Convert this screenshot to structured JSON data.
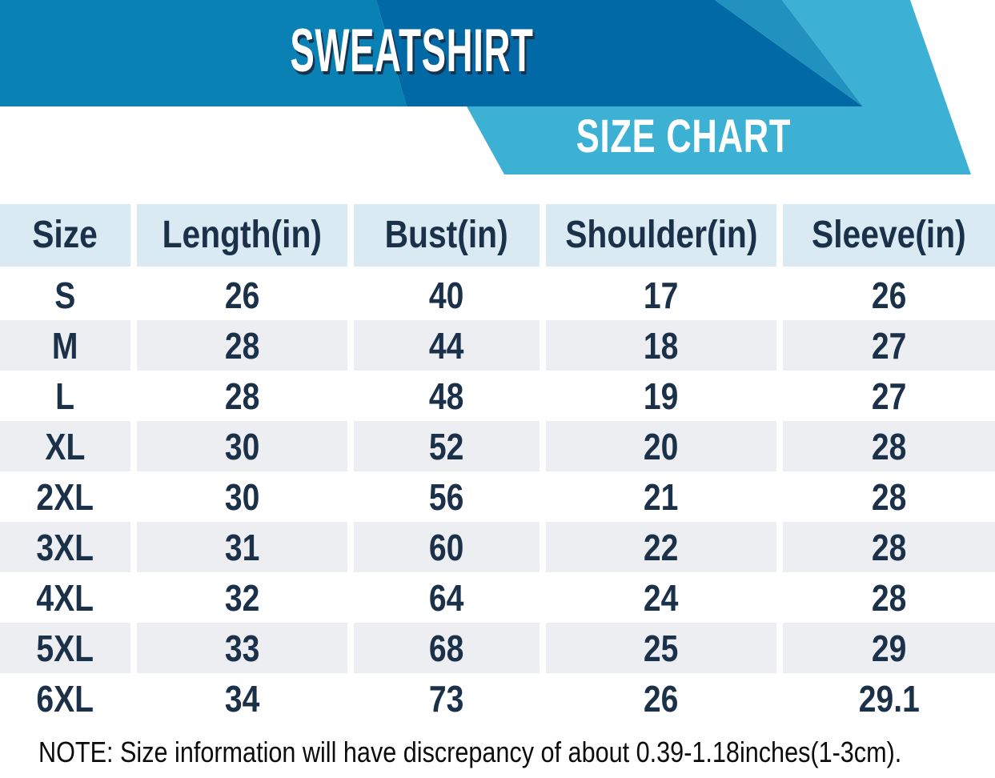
{
  "banner": {
    "product_title": "SWEATSHIRT",
    "chart_title": "SIZE CHART",
    "colors": {
      "left_blue": "#0981B5",
      "dark_blue": "#0069A6",
      "wedge_blue": "#2191C0",
      "cyan": "#3CB1D4",
      "title_shadow_navy": "#16334E",
      "header_bg": "#D9EAF3",
      "alt_row_bg": "#EDEEF2",
      "table_text_navy": "#1B3049"
    }
  },
  "chart_data": {
    "type": "table",
    "title": "SWEATSHIRT SIZE CHART",
    "columns": [
      "Size",
      "Length(in)",
      "Bust(in)",
      "Shoulder(in)",
      "Sleeve(in)"
    ],
    "rows": [
      [
        "S",
        "26",
        "40",
        "17",
        "26"
      ],
      [
        "M",
        "28",
        "44",
        "18",
        "27"
      ],
      [
        "L",
        "28",
        "48",
        "19",
        "27"
      ],
      [
        "XL",
        "30",
        "52",
        "20",
        "28"
      ],
      [
        "2XL",
        "30",
        "56",
        "21",
        "28"
      ],
      [
        "3XL",
        "31",
        "60",
        "22",
        "28"
      ],
      [
        "4XL",
        "32",
        "64",
        "24",
        "28"
      ],
      [
        "5XL",
        "33",
        "68",
        "25",
        "29"
      ],
      [
        "6XL",
        "34",
        "73",
        "26",
        "29.1"
      ]
    ],
    "note": "NOTE: Size information will have discrepancy of about 0.39-1.18inches(1-3cm)."
  },
  "note": "NOTE: Size information will have discrepancy of about 0.39-1.18inches(1-3cm)."
}
